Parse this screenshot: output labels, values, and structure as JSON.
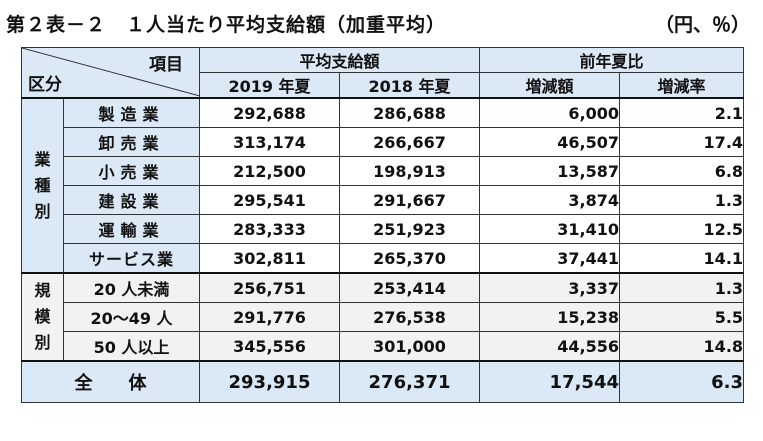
{
  "title": "第２表－２　１人当たり平均支給額（加重平均）",
  "unit": "（円、％）",
  "header": {
    "item": "項目",
    "category": "区分",
    "avg_group": "平均支給額",
    "ratio_group": "前年夏比",
    "cols": [
      "2019 年夏",
      "2018 年夏",
      "増減額",
      "増減率"
    ]
  },
  "groups": {
    "industry": [
      "業",
      "種",
      "別"
    ],
    "scale": [
      "規",
      "模",
      "別"
    ]
  },
  "industry_rows": [
    {
      "label": "製造業",
      "v2019": "292,688",
      "v2018": "286,688",
      "diff": "6,000",
      "rate": "2.1"
    },
    {
      "label": "卸売業",
      "v2019": "313,174",
      "v2018": "266,667",
      "diff": "46,507",
      "rate": "17.4"
    },
    {
      "label": "小売業",
      "v2019": "212,500",
      "v2018": "198,913",
      "diff": "13,587",
      "rate": "6.8"
    },
    {
      "label": "建設業",
      "v2019": "295,541",
      "v2018": "291,667",
      "diff": "3,874",
      "rate": "1.3"
    },
    {
      "label": "運輸業",
      "v2019": "283,333",
      "v2018": "251,923",
      "diff": "31,410",
      "rate": "12.5"
    },
    {
      "label": "サービス業",
      "v2019": "302,811",
      "v2018": "265,370",
      "diff": "37,441",
      "rate": "14.1"
    }
  ],
  "scale_rows": [
    {
      "label": "20 人未満",
      "v2019": "256,751",
      "v2018": "253,414",
      "diff": "3,337",
      "rate": "1.3"
    },
    {
      "label": "20～49 人",
      "v2019": "291,776",
      "v2018": "276,538",
      "diff": "15,238",
      "rate": "5.5"
    },
    {
      "label": "50 人以上",
      "v2019": "345,556",
      "v2018": "301,000",
      "diff": "44,556",
      "rate": "14.8"
    }
  ],
  "total": {
    "label": "全　　体",
    "v2019": "293,915",
    "v2018": "276,371",
    "diff": "17,544",
    "rate": "6.3"
  }
}
